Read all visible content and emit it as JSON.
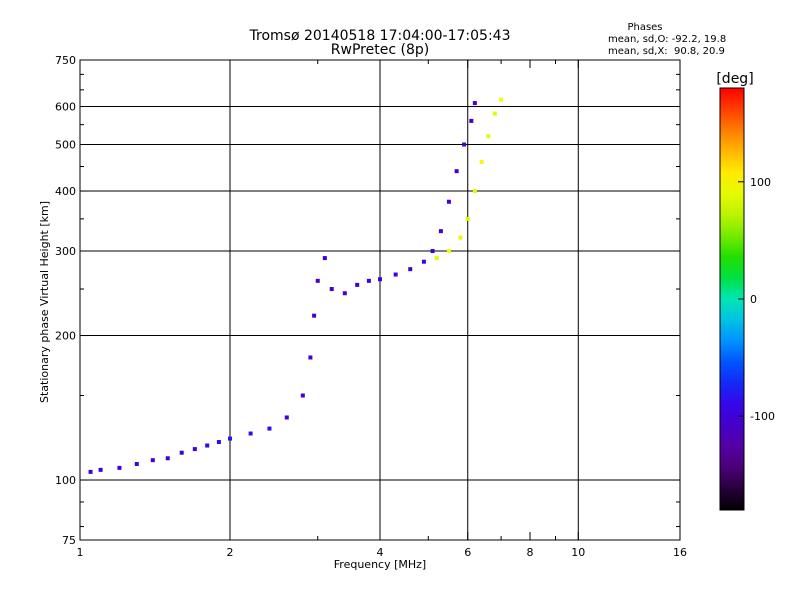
{
  "chart_data": {
    "type": "scatter",
    "title": "Tromsø 20140518 17:04:00-17:05:43",
    "subtitle": "RwPretec (8p)",
    "xlabel": "Frequency [MHz]",
    "ylabel": "Stationary phase Virtual Height [km]",
    "x_scale": "log",
    "y_scale": "log",
    "xlim": [
      1,
      16
    ],
    "ylim": [
      75,
      750
    ],
    "x_ticks": [
      1,
      2,
      4,
      6,
      8,
      10,
      16
    ],
    "x_tick_labels": [
      "1",
      "2",
      "4",
      "6",
      "8",
      "10",
      "16"
    ],
    "x_minor_ticks": [
      3,
      5,
      7,
      9
    ],
    "y_ticks": [
      75,
      100,
      200,
      300,
      400,
      500,
      600,
      750
    ],
    "y_tick_labels": [
      "75",
      "100",
      "200",
      "300",
      "400",
      "500",
      "600",
      "750"
    ],
    "y_minor_ticks": [
      80,
      90,
      150,
      250,
      350,
      450,
      550,
      650,
      700
    ],
    "grid": true,
    "x_grid_lines": [
      2,
      4,
      6,
      10
    ],
    "y_grid_lines": [
      100,
      200,
      300,
      400,
      500,
      600
    ],
    "stats": {
      "heading": "Phases",
      "o_line": "mean, sd,O: -92.2, 19.8",
      "x_line": "mean, sd,X:  90.8, 20.9"
    },
    "colorbar": {
      "label": "[deg]",
      "min": -180,
      "max": 180,
      "ticks": [
        100,
        0,
        -100
      ],
      "tick_labels": [
        "100",
        "0",
        "-100"
      ]
    },
    "series": [
      {
        "name": "O",
        "description_points": [
          {
            "x": 1.05,
            "y": 104,
            "phase": -95
          },
          {
            "x": 1.1,
            "y": 105,
            "phase": -95
          },
          {
            "x": 1.2,
            "y": 106,
            "phase": -100
          },
          {
            "x": 1.3,
            "y": 108,
            "phase": -95
          },
          {
            "x": 1.4,
            "y": 110,
            "phase": -100
          },
          {
            "x": 1.5,
            "y": 111,
            "phase": -95
          },
          {
            "x": 1.6,
            "y": 114,
            "phase": -100
          },
          {
            "x": 1.7,
            "y": 116,
            "phase": -95
          },
          {
            "x": 1.8,
            "y": 118,
            "phase": -90
          },
          {
            "x": 1.9,
            "y": 120,
            "phase": -85
          },
          {
            "x": 2.0,
            "y": 122,
            "phase": -80
          },
          {
            "x": 2.2,
            "y": 125,
            "phase": -85
          },
          {
            "x": 2.4,
            "y": 128,
            "phase": -90
          },
          {
            "x": 2.6,
            "y": 135,
            "phase": -100
          },
          {
            "x": 2.8,
            "y": 150,
            "phase": -110
          },
          {
            "x": 2.9,
            "y": 180,
            "phase": -110
          },
          {
            "x": 2.95,
            "y": 220,
            "phase": -110
          },
          {
            "x": 3.0,
            "y": 260,
            "phase": -105
          },
          {
            "x": 3.1,
            "y": 290,
            "phase": -100
          },
          {
            "x": 3.2,
            "y": 250,
            "phase": -110
          },
          {
            "x": 3.4,
            "y": 245,
            "phase": -105
          },
          {
            "x": 3.6,
            "y": 255,
            "phase": -100
          },
          {
            "x": 3.8,
            "y": 260,
            "phase": -100
          },
          {
            "x": 4.0,
            "y": 262,
            "phase": -100
          },
          {
            "x": 4.3,
            "y": 268,
            "phase": -100
          },
          {
            "x": 4.6,
            "y": 275,
            "phase": -100
          },
          {
            "x": 4.9,
            "y": 285,
            "phase": -95
          },
          {
            "x": 5.1,
            "y": 300,
            "phase": -100
          },
          {
            "x": 5.3,
            "y": 330,
            "phase": -105
          },
          {
            "x": 5.5,
            "y": 380,
            "phase": -110
          },
          {
            "x": 5.7,
            "y": 440,
            "phase": -110
          },
          {
            "x": 5.9,
            "y": 500,
            "phase": -110
          },
          {
            "x": 6.1,
            "y": 560,
            "phase": -110
          },
          {
            "x": 6.2,
            "y": 610,
            "phase": -105
          }
        ]
      },
      {
        "name": "X",
        "description_points": [
          {
            "x": 5.2,
            "y": 290,
            "phase": 90
          },
          {
            "x": 5.5,
            "y": 300,
            "phase": 95
          },
          {
            "x": 5.8,
            "y": 320,
            "phase": 90
          },
          {
            "x": 6.0,
            "y": 350,
            "phase": 85
          },
          {
            "x": 6.2,
            "y": 400,
            "phase": 90
          },
          {
            "x": 6.4,
            "y": 460,
            "phase": 95
          },
          {
            "x": 6.6,
            "y": 520,
            "phase": 90
          },
          {
            "x": 6.8,
            "y": 580,
            "phase": 90
          },
          {
            "x": 7.0,
            "y": 620,
            "phase": 95
          }
        ]
      }
    ]
  }
}
